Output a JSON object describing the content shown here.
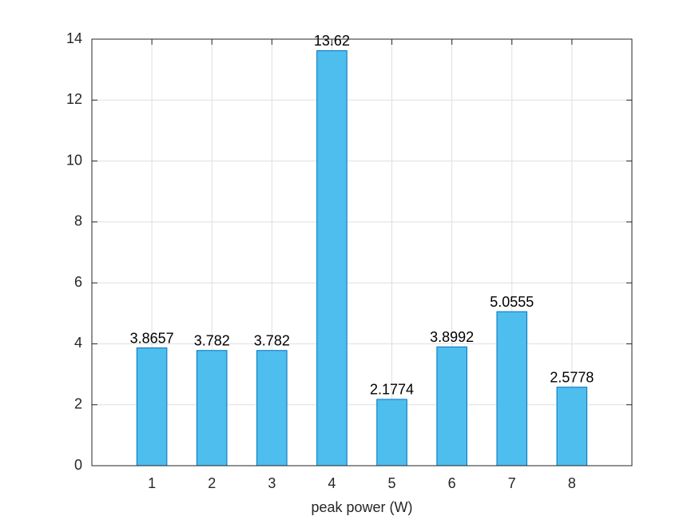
{
  "chart_data": {
    "type": "bar",
    "x": [
      1,
      2,
      3,
      4,
      5,
      6,
      7,
      8
    ],
    "values": [
      3.8657,
      3.782,
      3.782,
      13.62,
      2.1774,
      3.8992,
      5.0555,
      2.5778
    ],
    "color": "#4dbeee",
    "edge_color": "#0072bd",
    "x_label": "peak power (W)",
    "xlim": [
      0,
      9
    ],
    "xticks": [
      1,
      2,
      3,
      4,
      5,
      6,
      7,
      8
    ],
    "ylim": [
      0,
      14
    ],
    "yticks": [
      0,
      2,
      4,
      6,
      8,
      10,
      12,
      14
    ],
    "grid": true
  }
}
